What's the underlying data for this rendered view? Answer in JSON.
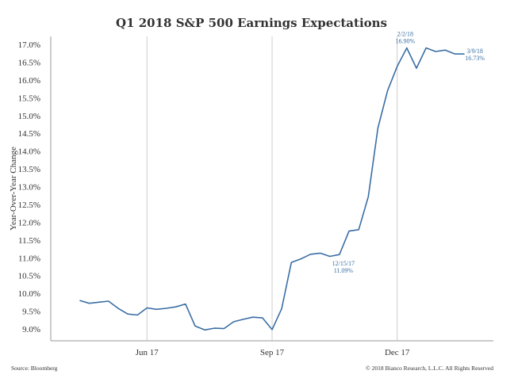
{
  "chart_data": {
    "type": "line",
    "title": "Q1 2018 S&P 500 Earnings Expectations",
    "ylabel": "Year-Over-Year Change",
    "xlabel": "",
    "ylim": [
      8.9,
      17.0
    ],
    "y_ticks": [
      "9.0%",
      "9.5%",
      "10.0%",
      "10.5%",
      "11.0%",
      "11.5%",
      "12.0%",
      "12.5%",
      "13.0%",
      "13.5%",
      "14.0%",
      "14.5%",
      "15.0%",
      "15.5%",
      "16.0%",
      "16.5%",
      "17.0%"
    ],
    "y_tick_values": [
      9.0,
      9.5,
      10.0,
      10.5,
      11.0,
      11.5,
      12.0,
      12.5,
      13.0,
      13.5,
      14.0,
      14.5,
      15.0,
      15.5,
      16.0,
      16.5,
      17.0
    ],
    "x_ticks": [
      "Jun 17",
      "Sep 17",
      "Dec 17"
    ],
    "x_tick_values": [
      7,
      20,
      33
    ],
    "x_range": [
      -3,
      43
    ],
    "grid": "vertical at x ticks",
    "series": [
      {
        "color": "#3a6ea5",
        "x": [
          0,
          1,
          2,
          3,
          4,
          5,
          6,
          7,
          8,
          9,
          10,
          11,
          12,
          13,
          14,
          15,
          16,
          17,
          18,
          19,
          20,
          21,
          22,
          23,
          24,
          25,
          26,
          27,
          28,
          29,
          30,
          31,
          32,
          33,
          34,
          35,
          36,
          37,
          38,
          39,
          40
        ],
        "values": [
          9.8,
          9.72,
          9.75,
          9.78,
          9.58,
          9.42,
          9.39,
          9.59,
          9.55,
          9.58,
          9.62,
          9.7,
          9.08,
          8.97,
          9.02,
          9.01,
          9.2,
          9.27,
          9.33,
          9.31,
          8.98,
          9.57,
          10.87,
          10.97,
          11.1,
          11.13,
          11.04,
          11.09,
          11.75,
          11.79,
          12.72,
          14.65,
          15.7,
          16.38,
          16.9,
          16.33,
          16.9,
          16.8,
          16.84,
          16.73,
          16.73
        ]
      }
    ],
    "annotations": [
      {
        "point_index": 27,
        "lines": [
          "12/15/17",
          "11.09%"
        ]
      },
      {
        "point_index": 34,
        "lines": [
          "2/2/18",
          "16.90%"
        ]
      },
      {
        "point_index": 40,
        "lines": [
          "3/9/18",
          "16.73%"
        ]
      }
    ]
  },
  "footer": {
    "source": "Source: Bloomberg",
    "copyright": "© 2018 Bianco Research, L.L.C. All Rights Reserved"
  },
  "colors": {
    "line": "#3a6ea5",
    "axis": "#999999",
    "grid": "#cccccc",
    "text": "#333333"
  }
}
